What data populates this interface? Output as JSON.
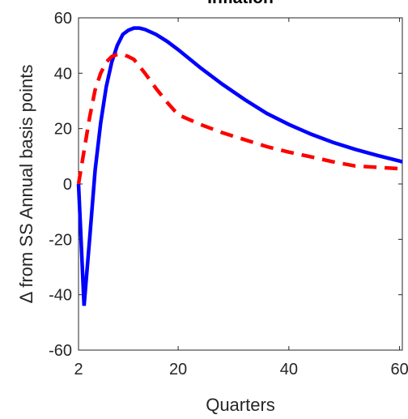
{
  "chart_data": {
    "type": "line",
    "title": "Inflation",
    "xlabel": "Quarters",
    "ylabel": "Δ from SS Annual basis points",
    "x": [
      2,
      3,
      4,
      5,
      6,
      7,
      8,
      9,
      10,
      11,
      12,
      13,
      14,
      16,
      18,
      20,
      24,
      28,
      32,
      36,
      40,
      44,
      48,
      52,
      56,
      60,
      60.5
    ],
    "series": [
      {
        "name": "blue",
        "color": "#0000ff",
        "dash": false,
        "values": [
          0,
          -44,
          -20,
          5,
          22,
          35,
          44,
          50,
          54,
          55.5,
          56.3,
          56.3,
          55.8,
          54,
          51.5,
          48.5,
          42,
          36,
          30.5,
          25.5,
          21.5,
          18,
          15,
          12.5,
          10.3,
          8.3,
          8
        ]
      },
      {
        "name": "red",
        "color": "#ff0000",
        "dash": true,
        "values": [
          0,
          12,
          24,
          34,
          40,
          44,
          46,
          46.8,
          46.8,
          46,
          45,
          42.5,
          40,
          34.5,
          29.5,
          25,
          21.5,
          18.5,
          16,
          13.5,
          11.5,
          9.8,
          8,
          6.5,
          6,
          5.5,
          5.5
        ]
      }
    ],
    "xlim": [
      2,
      60.5
    ],
    "xticks": [
      2,
      20,
      40,
      60
    ],
    "ylim": [
      -60,
      60
    ],
    "yticks": [
      -60,
      -40,
      -20,
      0,
      20,
      40,
      60
    ]
  }
}
